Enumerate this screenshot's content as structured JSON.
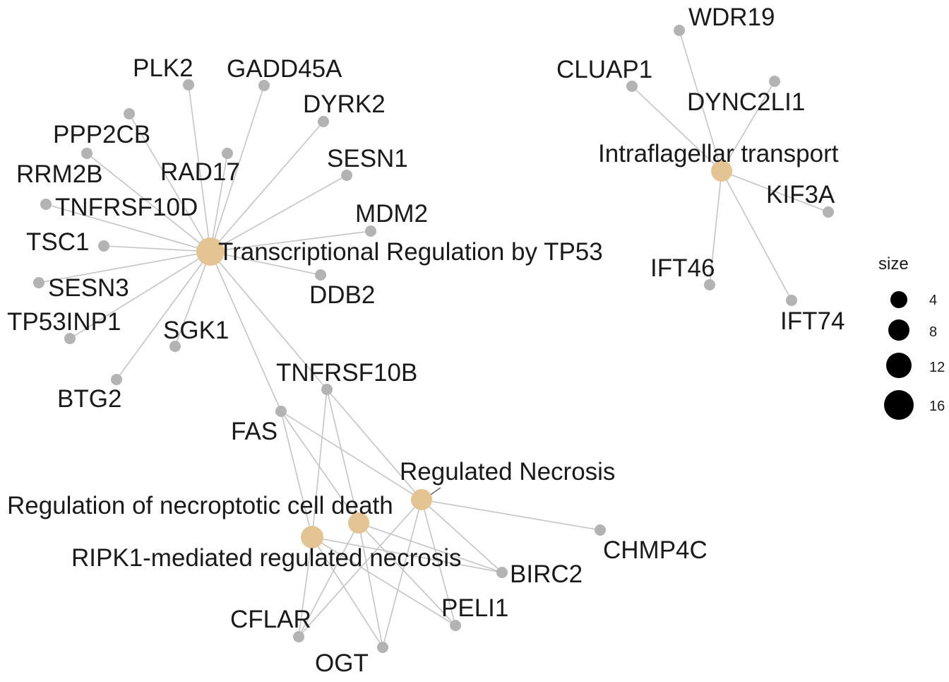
{
  "legend": {
    "title": "size",
    "items": [
      "4",
      "8",
      "12",
      "16"
    ]
  },
  "colors": {
    "gene_node": "#b3b3b3",
    "term_node": "#e5c494",
    "edge": "#c4c4c4"
  },
  "terms": [
    "Transcriptional Regulation by TP53",
    "Intraflagellar transport",
    "Regulated Necrosis",
    "Regulation of necroptotic cell death",
    "RIPK1-mediated regulated necrosis"
  ],
  "genes": [
    "PLK2",
    "GADD45A",
    "DYRK2",
    "SESN1",
    "MDM2",
    "DDB2",
    "PPP2CB",
    "RAD17",
    "RRM2B",
    "TNFRSF10D",
    "TSC1",
    "SESN3",
    "TP53INP1",
    "SGK1",
    "BTG2",
    "TNFRSF10B",
    "FAS",
    "WDR19",
    "CLUAP1",
    "DYNC2LI1",
    "KIF3A",
    "IFT46",
    "IFT74",
    "CHMP4C",
    "BIRC2",
    "PELI1",
    "CFLAR",
    "OGT"
  ],
  "edges": [
    [
      "Transcriptional Regulation by TP53",
      "PLK2"
    ],
    [
      "Transcriptional Regulation by TP53",
      "GADD45A"
    ],
    [
      "Transcriptional Regulation by TP53",
      "DYRK2"
    ],
    [
      "Transcriptional Regulation by TP53",
      "SESN1"
    ],
    [
      "Transcriptional Regulation by TP53",
      "MDM2"
    ],
    [
      "Transcriptional Regulation by TP53",
      "DDB2"
    ],
    [
      "Transcriptional Regulation by TP53",
      "PPP2CB"
    ],
    [
      "Transcriptional Regulation by TP53",
      "RAD17"
    ],
    [
      "Transcriptional Regulation by TP53",
      "RRM2B"
    ],
    [
      "Transcriptional Regulation by TP53",
      "TNFRSF10D"
    ],
    [
      "Transcriptional Regulation by TP53",
      "TSC1"
    ],
    [
      "Transcriptional Regulation by TP53",
      "SESN3"
    ],
    [
      "Transcriptional Regulation by TP53",
      "TP53INP1"
    ],
    [
      "Transcriptional Regulation by TP53",
      "SGK1"
    ],
    [
      "Transcriptional Regulation by TP53",
      "BTG2"
    ],
    [
      "Transcriptional Regulation by TP53",
      "TNFRSF10B"
    ],
    [
      "Transcriptional Regulation by TP53",
      "FAS"
    ],
    [
      "Intraflagellar transport",
      "WDR19"
    ],
    [
      "Intraflagellar transport",
      "CLUAP1"
    ],
    [
      "Intraflagellar transport",
      "DYNC2LI1"
    ],
    [
      "Intraflagellar transport",
      "KIF3A"
    ],
    [
      "Intraflagellar transport",
      "IFT46"
    ],
    [
      "Intraflagellar transport",
      "IFT74"
    ],
    [
      "Regulated Necrosis",
      "TNFRSF10B"
    ],
    [
      "Regulated Necrosis",
      "FAS"
    ],
    [
      "Regulated Necrosis",
      "CHMP4C"
    ],
    [
      "Regulated Necrosis",
      "BIRC2"
    ],
    [
      "Regulated Necrosis",
      "PELI1"
    ],
    [
      "Regulated Necrosis",
      "CFLAR"
    ],
    [
      "Regulated Necrosis",
      "OGT"
    ],
    [
      "Regulation of necroptotic cell death",
      "TNFRSF10B"
    ],
    [
      "Regulation of necroptotic cell death",
      "FAS"
    ],
    [
      "Regulation of necroptotic cell death",
      "BIRC2"
    ],
    [
      "Regulation of necroptotic cell death",
      "PELI1"
    ],
    [
      "Regulation of necroptotic cell death",
      "CFLAR"
    ],
    [
      "Regulation of necroptotic cell death",
      "OGT"
    ],
    [
      "RIPK1-mediated regulated necrosis",
      "TNFRSF10B"
    ],
    [
      "RIPK1-mediated regulated necrosis",
      "FAS"
    ],
    [
      "RIPK1-mediated regulated necrosis",
      "BIRC2"
    ],
    [
      "RIPK1-mediated regulated necrosis",
      "PELI1"
    ],
    [
      "RIPK1-mediated regulated necrosis",
      "CFLAR"
    ],
    [
      "RIPK1-mediated regulated necrosis",
      "OGT"
    ]
  ]
}
